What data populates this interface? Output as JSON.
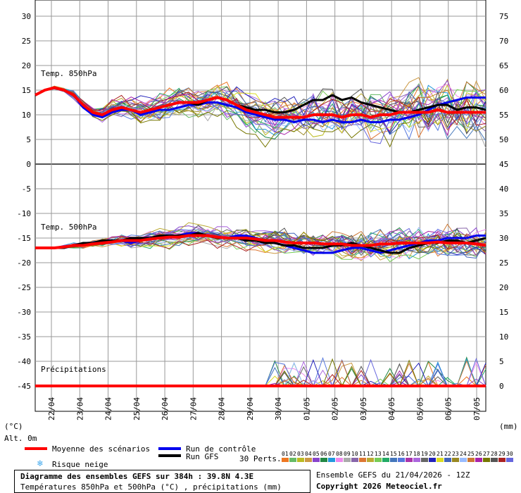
{
  "chart_data": {
    "type": "line",
    "left_axis": {
      "unit_label": "(°C)",
      "altitude_label": "Alt. 0m",
      "ticks": [
        30,
        25,
        20,
        15,
        10,
        5,
        0,
        -5,
        -10,
        -15,
        -20,
        -25,
        -30,
        -35,
        -40,
        -45
      ],
      "range": [
        -50,
        30
      ]
    },
    "right_axis": {
      "unit_label": "(mm)",
      "ticks": [
        75,
        70,
        65,
        60,
        55,
        50,
        45,
        40,
        35,
        30,
        25,
        20,
        15,
        10,
        5,
        0
      ]
    },
    "x_dates": [
      "22/04",
      "23/04",
      "24/04",
      "25/04",
      "26/04",
      "27/04",
      "28/04",
      "29/04",
      "30/04",
      "01/05",
      "02/05",
      "03/05",
      "04/05",
      "05/05",
      "06/05",
      "07/05"
    ],
    "panel_labels": {
      "t850": "Temp. 850hPa",
      "t500": "Temp. 500hPa",
      "precip": "Précipitations"
    },
    "t850_mean": [
      14,
      15,
      15.5,
      15,
      14,
      12,
      10.5,
      10,
      11,
      11.5,
      11,
      10.5,
      11,
      11.5,
      12,
      12.5,
      12.5,
      12.5,
      13,
      13.5,
      13,
      12,
      11,
      10.5,
      10,
      9.5,
      9.5,
      9.5,
      9.5,
      10,
      10,
      10,
      9.5,
      10,
      10,
      9.5,
      10,
      10,
      10.5,
      10.5,
      10.5,
      10.5,
      11,
      10.5,
      10.5,
      10.5,
      10.5,
      10.5
    ],
    "t850_control": [
      14,
      15,
      15.5,
      15,
      14,
      11.5,
      10,
      9.5,
      10.5,
      11,
      11,
      10,
      10.5,
      11,
      11,
      11.5,
      12,
      12,
      12.5,
      12.5,
      12,
      11.5,
      10.5,
      10,
      9.5,
      9,
      9,
      8.5,
      9,
      9,
      8.5,
      9,
      8.5,
      8.5,
      9,
      8.5,
      8.5,
      9,
      9,
      9.5,
      10,
      11,
      12,
      12.5,
      13,
      13.5,
      13.5,
      13.5
    ],
    "t850_gfs": [
      14,
      15,
      15.5,
      15,
      14,
      12,
      10.5,
      10,
      11,
      11.5,
      11,
      10.5,
      11,
      11.5,
      12,
      12.5,
      12.5,
      12,
      13,
      13.5,
      13,
      12,
      11.5,
      11,
      11,
      10.5,
      10.5,
      11,
      12,
      13,
      13,
      14,
      13,
      13.5,
      12.5,
      12,
      11.5,
      11,
      10.5,
      10.5,
      11,
      11.5,
      12,
      12,
      11,
      11.5,
      11.5,
      11
    ],
    "t500_mean": [
      -17,
      -17,
      -17,
      -16.8,
      -16.5,
      -16.5,
      -16.2,
      -16,
      -15.8,
      -15.5,
      -15.5,
      -15.5,
      -15.2,
      -15,
      -14.8,
      -14.8,
      -14.5,
      -14.5,
      -14.5,
      -14.8,
      -15,
      -15,
      -15,
      -15.2,
      -15.5,
      -15.5,
      -15.8,
      -16,
      -16,
      -16,
      -16.2,
      -16.2,
      -16.2,
      -16.5,
      -16.5,
      -16.5,
      -16.2,
      -16.2,
      -16,
      -16,
      -16,
      -16,
      -15.8,
      -16,
      -16,
      -16,
      -16.2,
      -16.5
    ],
    "t500_control": [
      -17,
      -17,
      -17,
      -17,
      -16.5,
      -16.5,
      -16,
      -15.5,
      -15.5,
      -15.5,
      -16,
      -15.5,
      -15,
      -14.5,
      -14.5,
      -14.5,
      -14,
      -14,
      -14.5,
      -15,
      -15,
      -14.5,
      -14.5,
      -15,
      -15.5,
      -16,
      -16.5,
      -17,
      -17.5,
      -18,
      -18,
      -18,
      -17.5,
      -17,
      -17,
      -17.5,
      -18,
      -17.5,
      -17,
      -16.5,
      -16,
      -15.5,
      -15.5,
      -15,
      -15,
      -15,
      -14.5,
      -14.5
    ],
    "t500_gfs": [
      -17,
      -17,
      -17,
      -17,
      -16.5,
      -16,
      -16,
      -15.5,
      -15.5,
      -15.5,
      -15,
      -15,
      -15,
      -14.5,
      -14.5,
      -14.5,
      -14.5,
      -14,
      -14.5,
      -15,
      -15,
      -15,
      -15.5,
      -15.5,
      -16,
      -16,
      -16.5,
      -16.5,
      -17,
      -17,
      -17,
      -16.5,
      -16.5,
      -16,
      -16.5,
      -17,
      -17.5,
      -18,
      -18,
      -17,
      -16.5,
      -16,
      -16,
      -15.5,
      -15.5,
      -16,
      -15.5,
      -15
    ]
  },
  "legend": {
    "mean": "Moyenne des scénarios",
    "control": "Run de contrôle",
    "gfs": "Run GFS",
    "snow": "Risque neige",
    "perts_label": "30 Perts.",
    "perts_numbers": [
      "01",
      "02",
      "03",
      "04",
      "05",
      "06",
      "07",
      "08",
      "09",
      "10",
      "11",
      "12",
      "13",
      "14",
      "15",
      "16",
      "17",
      "18",
      "19",
      "20",
      "21",
      "22",
      "23",
      "24",
      "25",
      "26",
      "27",
      "28",
      "29",
      "30"
    ],
    "perts_colors": [
      "#ee7722",
      "#66bb66",
      "#bbbb22",
      "#cc9944",
      "#8844cc",
      "#228844",
      "#2299dd",
      "#ee88ee",
      "#aaaaaa",
      "#8866aa",
      "#dd7733",
      "#bbaa33",
      "#77cc55",
      "#22aa66",
      "#4477bb",
      "#5577dd",
      "#aa33aa",
      "#aa66dd",
      "#666666",
      "#2222bb",
      "#dddd22",
      "#4466bb",
      "#998822",
      "#99bbff",
      "#cc7733",
      "#aa22aa",
      "#777700",
      "#555555",
      "#aa2222",
      "#6666dd"
    ]
  },
  "info": {
    "title": "Diagramme des ensembles GEFS sur 384h : 39.8N 4.3E",
    "subtitle": "Températures 850hPa et 500hPa (°C) , précipitations (mm)",
    "run": "Ensemble GEFS du 21/04/2026 - 12Z",
    "copyright": "Copyright 2026 Meteociel.fr"
  },
  "colors": {
    "mean": "#ff0000",
    "control": "#0000ee",
    "gfs": "#000000",
    "grid": "#999999",
    "divider": "#555555"
  }
}
